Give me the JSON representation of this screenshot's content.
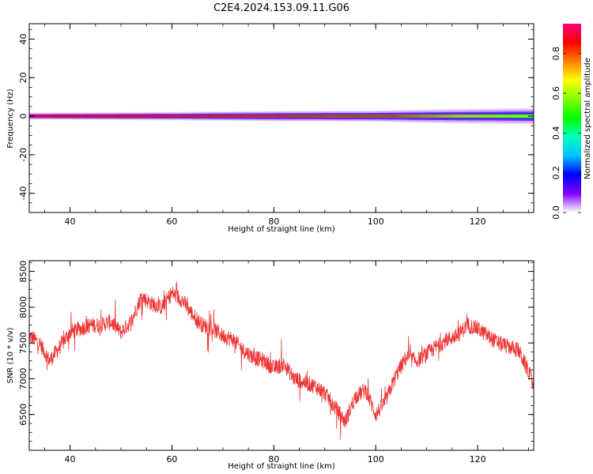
{
  "figure": {
    "title": "C2E4.2024.153.09.11.G06"
  },
  "chart_data": [
    {
      "type": "heatmap",
      "title": "C2E4.2024.153.09.11.G06",
      "xlabel": "Height of straight line (km)",
      "ylabel": "Frequency (Hz)",
      "xlim": [
        32,
        131
      ],
      "ylim": [
        -50,
        48
      ],
      "xticks": [
        40,
        60,
        80,
        100,
        120
      ],
      "yticks": [
        -40,
        -20,
        0,
        20,
        40
      ],
      "band": {
        "center_hz": 0,
        "core_halfwidth_hz": [
          [
            32,
            0.6
          ],
          [
            60,
            0.8
          ],
          [
            80,
            1.0
          ],
          [
            100,
            1.2
          ],
          [
            131,
            1.6
          ]
        ],
        "halo_halfwidth_hz": [
          [
            32,
            1.8
          ],
          [
            60,
            2.2
          ],
          [
            80,
            2.8
          ],
          [
            100,
            3.0
          ],
          [
            110,
            3.6
          ],
          [
            131,
            4.4
          ]
        ]
      },
      "colorbar": {
        "label": "Normalized spectral amplitude",
        "range": [
          0.0,
          0.95
        ],
        "ticks": [
          0.0,
          0.2,
          0.4,
          0.6,
          0.8
        ],
        "colors": [
          "#ffffff",
          "#8000ff",
          "#0000ff",
          "#00bfff",
          "#00ffbf",
          "#00ff00",
          "#80ff00",
          "#ffff00",
          "#ff8000",
          "#ff0000",
          "#ff0080"
        ]
      }
    },
    {
      "type": "line",
      "xlabel": "Height of straight line (km)",
      "ylabel": "SNR (10 * v/v)",
      "xlim": [
        32,
        131
      ],
      "ylim": [
        6000,
        8650
      ],
      "xticks": [
        40,
        60,
        80,
        100,
        120
      ],
      "yticks": [
        6500,
        7000,
        7500,
        8000,
        8500
      ],
      "line_color": "#ee3333",
      "series": [
        {
          "x": [
            32,
            34,
            36,
            38,
            40,
            42,
            44,
            46,
            48,
            50,
            52,
            54,
            56,
            58,
            60,
            62,
            64,
            66,
            68,
            70,
            72,
            74,
            76,
            78,
            80,
            82,
            84,
            86,
            88,
            90,
            92,
            94,
            96,
            98,
            100,
            102,
            104,
            106,
            108,
            110,
            112,
            114,
            116,
            118,
            120,
            122,
            124,
            126,
            128,
            130,
            131
          ],
          "y": [
            7600,
            7500,
            7250,
            7450,
            7650,
            7700,
            7750,
            7750,
            7800,
            7650,
            7800,
            8150,
            8050,
            8000,
            8200,
            8100,
            7900,
            7750,
            7700,
            7600,
            7550,
            7400,
            7300,
            7250,
            7150,
            7200,
            7000,
            6950,
            6900,
            6800,
            6600,
            6400,
            6750,
            6850,
            6500,
            6700,
            7050,
            7300,
            7250,
            7350,
            7450,
            7550,
            7600,
            7750,
            7700,
            7600,
            7500,
            7450,
            7400,
            7100,
            6900
          ]
        }
      ]
    }
  ]
}
